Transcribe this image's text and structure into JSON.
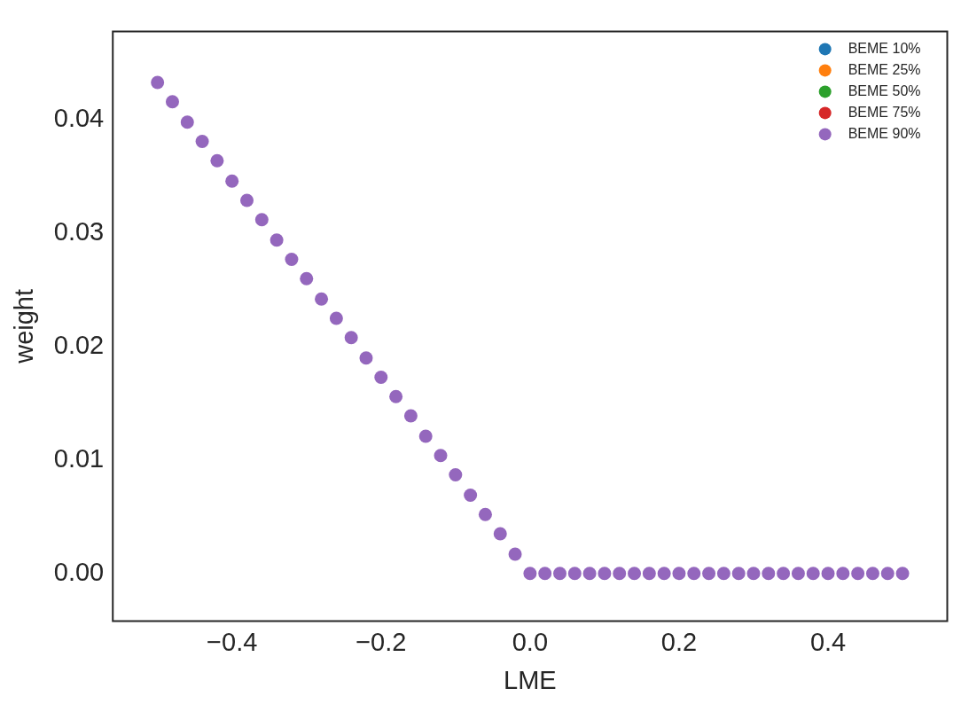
{
  "chart_data": {
    "type": "scatter",
    "xlabel": "LME",
    "ylabel": "weight",
    "x": [
      -0.5,
      -0.48,
      -0.46,
      -0.44,
      -0.42,
      -0.4,
      -0.38,
      -0.36,
      -0.34,
      -0.32,
      -0.3,
      -0.28,
      -0.26,
      -0.24,
      -0.22,
      -0.2,
      -0.18,
      -0.16,
      -0.14,
      -0.12,
      -0.1,
      -0.08,
      -0.06,
      -0.04,
      -0.02,
      0,
      0.02,
      0.04,
      0.06,
      0.08,
      0.1,
      0.12,
      0.14,
      0.16,
      0.18,
      0.2,
      0.22,
      0.24,
      0.26,
      0.28,
      0.3,
      0.32,
      0.34,
      0.36,
      0.38,
      0.4,
      0.42,
      0.44,
      0.46,
      0.48,
      0.5
    ],
    "series": [
      {
        "name": "BEME 10%",
        "color": "#1f77b4",
        "values": [
          null,
          null,
          null,
          null,
          null,
          null,
          null,
          null,
          null,
          null,
          null,
          null,
          null,
          null,
          null,
          null,
          null,
          null,
          null,
          null,
          null,
          null,
          null,
          null,
          null,
          null,
          null,
          null,
          null,
          null,
          null,
          null,
          null,
          null,
          null,
          null,
          null,
          null,
          null,
          null,
          null,
          null,
          null,
          null,
          null,
          null,
          null,
          null,
          null,
          null,
          null
        ]
      },
      {
        "name": "BEME 25%",
        "color": "#ff7f0e",
        "values": [
          null,
          null,
          null,
          null,
          null,
          null,
          null,
          null,
          null,
          null,
          null,
          null,
          null,
          null,
          null,
          null,
          null,
          null,
          null,
          null,
          null,
          null,
          null,
          null,
          null,
          null,
          null,
          null,
          null,
          null,
          null,
          null,
          null,
          null,
          null,
          null,
          null,
          null,
          null,
          null,
          null,
          null,
          null,
          null,
          null,
          null,
          null,
          null,
          null,
          null,
          null
        ]
      },
      {
        "name": "BEME 50%",
        "color": "#2ca02c",
        "values": [
          null,
          null,
          null,
          null,
          null,
          null,
          null,
          null,
          null,
          null,
          null,
          null,
          null,
          null,
          null,
          null,
          null,
          null,
          null,
          null,
          null,
          null,
          null,
          null,
          null,
          null,
          null,
          null,
          null,
          null,
          null,
          null,
          null,
          null,
          null,
          null,
          null,
          null,
          null,
          null,
          null,
          null,
          null,
          null,
          null,
          null,
          null,
          null,
          null,
          null,
          null
        ]
      },
      {
        "name": "BEME 75%",
        "color": "#d62728",
        "values": [
          null,
          null,
          null,
          null,
          null,
          null,
          null,
          null,
          null,
          null,
          null,
          null,
          null,
          null,
          null,
          null,
          null,
          null,
          null,
          null,
          null,
          null,
          null,
          null,
          null,
          null,
          null,
          null,
          null,
          null,
          null,
          null,
          null,
          null,
          null,
          null,
          null,
          null,
          null,
          null,
          null,
          null,
          null,
          null,
          null,
          null,
          null,
          null,
          null,
          null,
          null
        ]
      },
      {
        "name": "BEME 90%",
        "color": "#9467bd",
        "values": [
          0.0433,
          0.0416,
          0.0398,
          0.0381,
          0.0364,
          0.0346,
          0.0329,
          0.0312,
          0.0294,
          0.0277,
          0.026,
          0.0242,
          0.0225,
          0.0208,
          0.019,
          0.0173,
          0.0156,
          0.0139,
          0.0121,
          0.0104,
          0.0087,
          0.0069,
          0.0052,
          0.0035,
          0.0017,
          0,
          0,
          0,
          0,
          0,
          0,
          0,
          0,
          0,
          0,
          0,
          0,
          0,
          0,
          0,
          0,
          0,
          0,
          0,
          0,
          0,
          0,
          0,
          0,
          0,
          0
        ]
      }
    ],
    "xlim": [
      -0.56,
      0.56
    ],
    "xticks": [
      {
        "value": -0.4,
        "label": "−0.4"
      },
      {
        "value": -0.2,
        "label": "−0.2"
      },
      {
        "value": 0,
        "label": "0.0"
      },
      0.2,
      0.4
    ],
    "ylim": [
      -0.0042,
      0.0478
    ],
    "yticks": [
      {
        "value": 0,
        "label": "0.00"
      },
      {
        "value": 0.01,
        "label": "0.01"
      },
      {
        "value": 0.02,
        "label": "0.02"
      },
      {
        "value": 0.03,
        "label": "0.03"
      },
      {
        "value": 0.04,
        "label": "0.04"
      }
    ],
    "grid": false,
    "legend": "top right",
    "marker": "circle"
  }
}
